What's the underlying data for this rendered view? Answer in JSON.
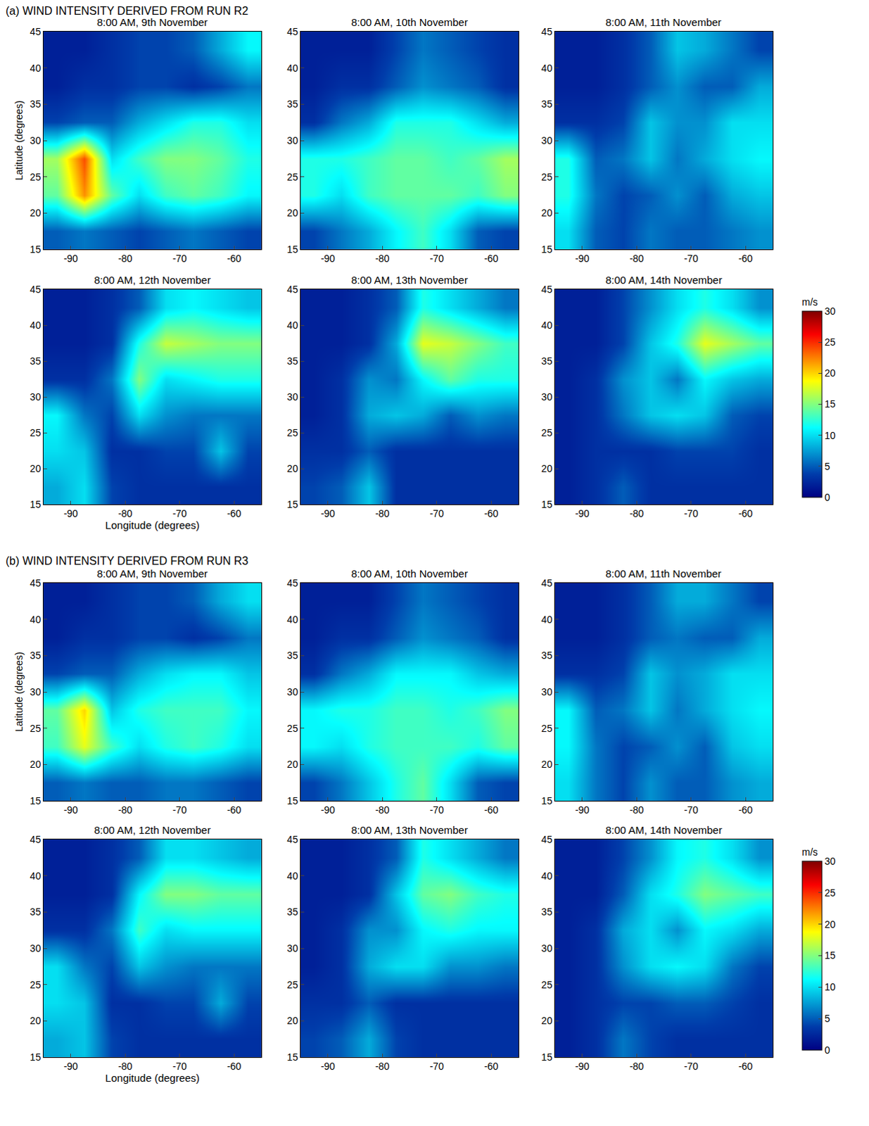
{
  "chart_data": {
    "type": "heatmap",
    "x_label": "Longitude (degrees)",
    "y_label": "Latitude (degrees)",
    "xlim": [
      -95,
      -55
    ],
    "ylim": [
      15,
      45
    ],
    "xticks": [
      -90,
      -80,
      -70,
      -60
    ],
    "yticks": [
      15,
      20,
      25,
      30,
      35,
      40,
      45
    ],
    "x": [
      -92.5,
      -87.5,
      -82.5,
      -77.5,
      -72.5,
      -67.5,
      -62.5,
      -57.5
    ],
    "y": [
      17.5,
      22.5,
      27.5,
      32.5,
      37.5,
      42.5
    ],
    "colorbar": {
      "title": "m/s",
      "range": [
        0,
        30
      ],
      "ticks": [
        0,
        5,
        10,
        15,
        20,
        25,
        30
      ]
    },
    "groups": [
      {
        "title": "(a) WIND INTENSITY DERIVED FROM RUN R2",
        "panels": [
          {
            "title": "8:00 AM, 9th November",
            "values": [
              [
                5,
                6,
                5,
                4,
                5,
                6,
                5,
                4
              ],
              [
                14,
                22,
                14,
                10,
                13,
                14,
                13,
                11
              ],
              [
                16,
                24,
                10,
                13,
                15,
                15,
                14,
                12
              ],
              [
                4,
                5,
                5,
                8,
                10,
                12,
                12,
                10
              ],
              [
                2,
                3,
                3,
                4,
                4,
                3,
                4,
                6
              ],
              [
                2,
                2,
                3,
                4,
                4,
                5,
                8,
                11
              ]
            ]
          },
          {
            "title": "8:00 AM, 10th November",
            "values": [
              [
                4,
                6,
                8,
                11,
                13,
                10,
                5,
                4
              ],
              [
                12,
                10,
                13,
                14,
                14,
                14,
                13,
                15
              ],
              [
                12,
                12,
                13,
                14,
                14,
                13,
                14,
                16
              ],
              [
                3,
                6,
                8,
                12,
                12,
                12,
                10,
                8
              ],
              [
                2,
                3,
                3,
                5,
                7,
                6,
                5,
                3
              ],
              [
                2,
                2,
                2,
                4,
                6,
                5,
                4,
                3
              ]
            ]
          },
          {
            "title": "8:00 AM, 11th November",
            "values": [
              [
                10,
                5,
                4,
                6,
                5,
                5,
                6,
                7
              ],
              [
                12,
                6,
                4,
                5,
                7,
                5,
                8,
                9
              ],
              [
                12,
                5,
                6,
                9,
                6,
                8,
                10,
                11
              ],
              [
                3,
                3,
                4,
                9,
                7,
                7,
                10,
                10
              ],
              [
                2,
                2,
                3,
                5,
                7,
                5,
                5,
                8
              ],
              [
                2,
                2,
                3,
                5,
                9,
                8,
                6,
                4
              ]
            ]
          },
          {
            "title": "8:00 AM, 12th November",
            "values": [
              [
                8,
                10,
                4,
                3,
                3,
                3,
                3,
                3
              ],
              [
                10,
                9,
                3,
                3,
                4,
                4,
                9,
                4
              ],
              [
                11,
                6,
                4,
                10,
                7,
                6,
                6,
                6
              ],
              [
                3,
                3,
                6,
                15,
                10,
                11,
                12,
                12
              ],
              [
                2,
                2,
                3,
                12,
                17,
                16,
                15,
                15
              ],
              [
                2,
                2,
                3,
                5,
                10,
                11,
                10,
                9
              ]
            ]
          },
          {
            "title": "8:00 AM, 13th November",
            "values": [
              [
                4,
                5,
                9,
                3,
                3,
                3,
                3,
                3
              ],
              [
                3,
                3,
                5,
                3,
                3,
                3,
                3,
                3
              ],
              [
                2,
                3,
                8,
                9,
                8,
                5,
                7,
                6
              ],
              [
                2,
                3,
                7,
                6,
                11,
                14,
                12,
                12
              ],
              [
                2,
                2,
                3,
                8,
                18,
                17,
                15,
                13
              ],
              [
                2,
                2,
                3,
                5,
                12,
                10,
                8,
                6
              ]
            ]
          },
          {
            "title": "8:00 AM, 14th November",
            "values": [
              [
                2,
                3,
                5,
                3,
                3,
                3,
                3,
                3
              ],
              [
                2,
                3,
                3,
                3,
                4,
                4,
                4,
                3
              ],
              [
                2,
                3,
                6,
                9,
                10,
                9,
                5,
                4
              ],
              [
                2,
                3,
                7,
                9,
                6,
                11,
                9,
                8
              ],
              [
                2,
                2,
                4,
                9,
                12,
                18,
                16,
                14
              ],
              [
                2,
                2,
                4,
                7,
                10,
                12,
                10,
                7
              ]
            ]
          }
        ]
      },
      {
        "title": "(b) WIND INTENSITY DERIVED FROM RUN R3",
        "panels": [
          {
            "title": "8:00 AM, 9th November",
            "values": [
              [
                5,
                6,
                5,
                5,
                6,
                6,
                5,
                4
              ],
              [
                13,
                18,
                13,
                10,
                12,
                13,
                12,
                10
              ],
              [
                14,
                20,
                9,
                12,
                13,
                13,
                13,
                11
              ],
              [
                4,
                5,
                5,
                8,
                10,
                11,
                11,
                9
              ],
              [
                2,
                3,
                3,
                4,
                4,
                3,
                4,
                6
              ],
              [
                2,
                2,
                3,
                4,
                4,
                5,
                8,
                10
              ]
            ]
          },
          {
            "title": "8:00 AM, 10th November",
            "values": [
              [
                4,
                6,
                9,
                12,
                14,
                10,
                5,
                4
              ],
              [
                11,
                10,
                12,
                13,
                13,
                13,
                12,
                14
              ],
              [
                11,
                12,
                12,
                13,
                13,
                12,
                13,
                15
              ],
              [
                3,
                6,
                8,
                11,
                11,
                11,
                9,
                8
              ],
              [
                2,
                3,
                3,
                5,
                7,
                6,
                5,
                3
              ],
              [
                2,
                2,
                2,
                4,
                6,
                5,
                4,
                3
              ]
            ]
          },
          {
            "title": "8:00 AM, 11th November",
            "values": [
              [
                10,
                6,
                4,
                7,
                5,
                5,
                7,
                8
              ],
              [
                11,
                6,
                4,
                5,
                7,
                5,
                9,
                10
              ],
              [
                11,
                5,
                6,
                9,
                6,
                8,
                10,
                11
              ],
              [
                3,
                3,
                4,
                9,
                7,
                8,
                10,
                10
              ],
              [
                2,
                2,
                3,
                5,
                6,
                5,
                5,
                8
              ],
              [
                2,
                2,
                3,
                5,
                8,
                8,
                6,
                4
              ]
            ]
          },
          {
            "title": "8:00 AM, 12th November",
            "values": [
              [
                8,
                9,
                4,
                3,
                3,
                3,
                3,
                3
              ],
              [
                10,
                9,
                3,
                3,
                4,
                4,
                8,
                4
              ],
              [
                10,
                6,
                4,
                9,
                7,
                6,
                6,
                6
              ],
              [
                3,
                3,
                6,
                13,
                10,
                11,
                11,
                11
              ],
              [
                2,
                2,
                3,
                11,
                15,
                15,
                14,
                14
              ],
              [
                2,
                2,
                3,
                5,
                10,
                10,
                9,
                8
              ]
            ]
          },
          {
            "title": "8:00 AM, 13th November",
            "values": [
              [
                4,
                5,
                8,
                4,
                3,
                3,
                3,
                3
              ],
              [
                3,
                3,
                5,
                3,
                3,
                3,
                3,
                3
              ],
              [
                2,
                3,
                8,
                10,
                10,
                7,
                7,
                6
              ],
              [
                2,
                3,
                7,
                7,
                11,
                12,
                11,
                11
              ],
              [
                2,
                2,
                3,
                9,
                14,
                15,
                13,
                12
              ],
              [
                2,
                2,
                3,
                5,
                12,
                10,
                8,
                6
              ]
            ]
          },
          {
            "title": "8:00 AM, 14th November",
            "values": [
              [
                2,
                3,
                6,
                4,
                3,
                3,
                3,
                3
              ],
              [
                2,
                3,
                4,
                4,
                5,
                5,
                4,
                3
              ],
              [
                2,
                3,
                7,
                10,
                11,
                10,
                6,
                4
              ],
              [
                2,
                3,
                8,
                10,
                7,
                11,
                10,
                8
              ],
              [
                2,
                2,
                5,
                10,
                12,
                15,
                14,
                13
              ],
              [
                2,
                2,
                4,
                7,
                11,
                12,
                10,
                7
              ]
            ]
          }
        ]
      }
    ]
  }
}
